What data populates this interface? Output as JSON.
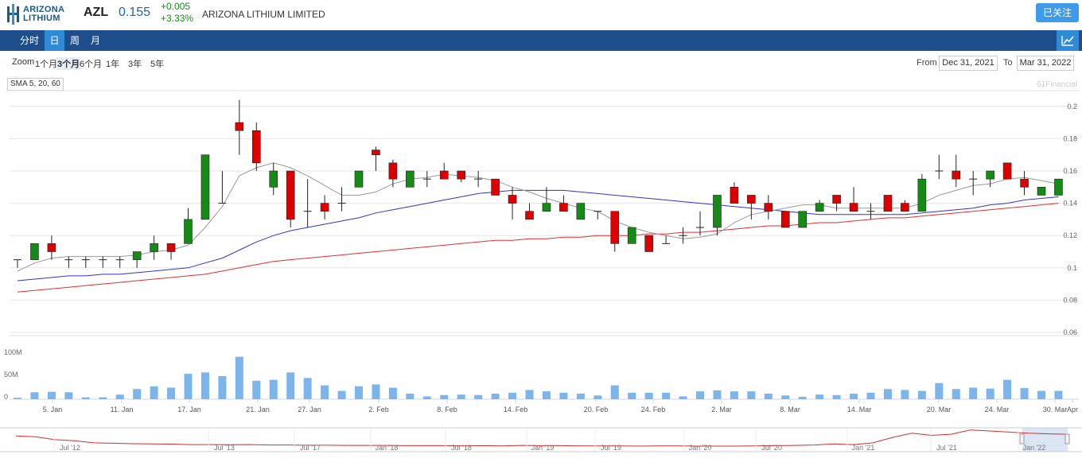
{
  "header": {
    "logo_line1": "ARIZONA",
    "logo_line2": "LITHIUM",
    "ticker": "AZL",
    "price": "0.155",
    "change": "+0.005",
    "change_pct": "+3.33%",
    "company": "ARIZONA LITHIUM LIMITED",
    "follow_label": "已关注"
  },
  "nav": {
    "tabs": [
      {
        "label": "分时",
        "active": false
      },
      {
        "label": "日",
        "active": true
      },
      {
        "label": "周",
        "active": false
      },
      {
        "label": "月",
        "active": false
      }
    ]
  },
  "zoom": {
    "label": "Zoom",
    "options": [
      "1个月",
      "3个月",
      "6个月",
      "1年",
      "3年",
      "5年"
    ],
    "selected": "3个月"
  },
  "range": {
    "from_label": "From",
    "from_value": "Dec 31, 2021",
    "to_label": "To",
    "to_value": "Mar 31, 2022"
  },
  "indicator_label": "SMA 5, 20, 60",
  "credit": "61Financial",
  "colors": {
    "up": "#168a16",
    "down": "#dd0000",
    "sma5": "#999999",
    "sma20": "#3333cc",
    "sma60": "#e03030",
    "volume": "#7cb5ec",
    "nav": "#1e4f8c",
    "accent": "#2f8ad8"
  },
  "chart_data": {
    "type": "candlestick",
    "y_ticks": [
      "0.06",
      "0.08",
      "0.1",
      "0.12",
      "0.14",
      "0.16",
      "0.18",
      "0.2"
    ],
    "x_ticks": [
      "5. Jan",
      "11. Jan",
      "17. Jan",
      "21. Jan",
      "27. Jan",
      "2. Feb",
      "8. Feb",
      "14. Feb",
      "20. Feb",
      "24. Feb",
      "2. Mar",
      "8. Mar",
      "14. Mar",
      "20. Mar",
      "24. Mar",
      "30. Mar",
      "Apr"
    ],
    "ohlc": [
      [
        0.105,
        0.105,
        0.1,
        0.105
      ],
      [
        0.105,
        0.115,
        0.105,
        0.115
      ],
      [
        0.115,
        0.12,
        0.105,
        0.11
      ],
      [
        0.105,
        0.107,
        0.1,
        0.105
      ],
      [
        0.105,
        0.107,
        0.1,
        0.105
      ],
      [
        0.105,
        0.107,
        0.1,
        0.105
      ],
      [
        0.105,
        0.107,
        0.1,
        0.105
      ],
      [
        0.105,
        0.11,
        0.1,
        0.11
      ],
      [
        0.11,
        0.12,
        0.105,
        0.115
      ],
      [
        0.115,
        0.115,
        0.105,
        0.11
      ],
      [
        0.115,
        0.137,
        0.115,
        0.13
      ],
      [
        0.13,
        0.17,
        0.13,
        0.17
      ],
      [
        0.14,
        0.16,
        0.14,
        0.14
      ],
      [
        0.19,
        0.204,
        0.17,
        0.185
      ],
      [
        0.185,
        0.19,
        0.16,
        0.165
      ],
      [
        0.15,
        0.165,
        0.145,
        0.16
      ],
      [
        0.16,
        0.16,
        0.125,
        0.13
      ],
      [
        0.135,
        0.155,
        0.125,
        0.135
      ],
      [
        0.14,
        0.145,
        0.13,
        0.135
      ],
      [
        0.14,
        0.15,
        0.135,
        0.14
      ],
      [
        0.15,
        0.16,
        0.15,
        0.16
      ],
      [
        0.173,
        0.175,
        0.16,
        0.17
      ],
      [
        0.165,
        0.167,
        0.15,
        0.155
      ],
      [
        0.15,
        0.16,
        0.15,
        0.16
      ],
      [
        0.155,
        0.16,
        0.15,
        0.155
      ],
      [
        0.16,
        0.165,
        0.155,
        0.155
      ],
      [
        0.16,
        0.16,
        0.153,
        0.155
      ],
      [
        0.155,
        0.16,
        0.15,
        0.155
      ],
      [
        0.155,
        0.155,
        0.145,
        0.145
      ],
      [
        0.145,
        0.15,
        0.13,
        0.14
      ],
      [
        0.135,
        0.14,
        0.13,
        0.13
      ],
      [
        0.135,
        0.15,
        0.135,
        0.14
      ],
      [
        0.14,
        0.145,
        0.135,
        0.135
      ],
      [
        0.13,
        0.14,
        0.13,
        0.14
      ],
      [
        0.135,
        0.135,
        0.13,
        0.135
      ],
      [
        0.135,
        0.135,
        0.11,
        0.115
      ],
      [
        0.115,
        0.125,
        0.115,
        0.125
      ],
      [
        0.12,
        0.12,
        0.11,
        0.11
      ],
      [
        0.115,
        0.12,
        0.115,
        0.115
      ],
      [
        0.12,
        0.125,
        0.115,
        0.12
      ],
      [
        0.125,
        0.135,
        0.12,
        0.125
      ],
      [
        0.125,
        0.145,
        0.12,
        0.145
      ],
      [
        0.15,
        0.153,
        0.14,
        0.14
      ],
      [
        0.145,
        0.145,
        0.13,
        0.14
      ],
      [
        0.14,
        0.145,
        0.13,
        0.135
      ],
      [
        0.135,
        0.135,
        0.125,
        0.125
      ],
      [
        0.125,
        0.135,
        0.125,
        0.135
      ],
      [
        0.135,
        0.142,
        0.135,
        0.14
      ],
      [
        0.145,
        0.145,
        0.135,
        0.14
      ],
      [
        0.14,
        0.15,
        0.135,
        0.135
      ],
      [
        0.135,
        0.14,
        0.13,
        0.135
      ],
      [
        0.145,
        0.145,
        0.135,
        0.135
      ],
      [
        0.14,
        0.142,
        0.135,
        0.135
      ],
      [
        0.135,
        0.158,
        0.135,
        0.155
      ],
      [
        0.16,
        0.17,
        0.155,
        0.16
      ],
      [
        0.16,
        0.17,
        0.15,
        0.155
      ],
      [
        0.155,
        0.16,
        0.145,
        0.155
      ],
      [
        0.155,
        0.16,
        0.15,
        0.16
      ],
      [
        0.165,
        0.165,
        0.155,
        0.155
      ],
      [
        0.155,
        0.16,
        0.145,
        0.15
      ],
      [
        0.145,
        0.15,
        0.145,
        0.15
      ],
      [
        0.145,
        0.155,
        0.145,
        0.155
      ]
    ],
    "sma5": [
      0.098,
      0.103,
      0.106,
      0.107,
      0.107,
      0.107,
      0.107,
      0.108,
      0.11,
      0.111,
      0.114,
      0.125,
      0.138,
      0.157,
      0.162,
      0.165,
      0.162,
      0.157,
      0.151,
      0.145,
      0.145,
      0.147,
      0.152,
      0.155,
      0.156,
      0.158,
      0.157,
      0.156,
      0.154,
      0.15,
      0.147,
      0.143,
      0.14,
      0.137,
      0.135,
      0.129,
      0.125,
      0.122,
      0.12,
      0.118,
      0.119,
      0.121,
      0.128,
      0.133,
      0.135,
      0.137,
      0.139,
      0.139,
      0.137,
      0.137,
      0.137,
      0.137,
      0.137,
      0.14,
      0.145,
      0.148,
      0.151,
      0.152,
      0.155,
      0.156,
      0.154,
      0.152
    ],
    "sma20": [
      0.092,
      0.093,
      0.094,
      0.095,
      0.095,
      0.096,
      0.096,
      0.097,
      0.098,
      0.099,
      0.1,
      0.103,
      0.106,
      0.111,
      0.116,
      0.12,
      0.123,
      0.125,
      0.127,
      0.129,
      0.131,
      0.134,
      0.136,
      0.138,
      0.14,
      0.142,
      0.144,
      0.146,
      0.147,
      0.148,
      0.148,
      0.148,
      0.148,
      0.147,
      0.146,
      0.145,
      0.144,
      0.143,
      0.142,
      0.141,
      0.14,
      0.139,
      0.138,
      0.137,
      0.136,
      0.135,
      0.134,
      0.133,
      0.133,
      0.133,
      0.133,
      0.133,
      0.133,
      0.134,
      0.135,
      0.136,
      0.137,
      0.139,
      0.14,
      0.142,
      0.143,
      0.144
    ],
    "sma60": [
      0.085,
      0.086,
      0.087,
      0.088,
      0.089,
      0.09,
      0.091,
      0.092,
      0.093,
      0.094,
      0.095,
      0.096,
      0.098,
      0.1,
      0.102,
      0.104,
      0.105,
      0.106,
      0.107,
      0.108,
      0.109,
      0.11,
      0.111,
      0.112,
      0.113,
      0.114,
      0.115,
      0.116,
      0.117,
      0.117,
      0.118,
      0.118,
      0.119,
      0.119,
      0.12,
      0.12,
      0.12,
      0.121,
      0.121,
      0.122,
      0.122,
      0.123,
      0.124,
      0.125,
      0.126,
      0.126,
      0.127,
      0.128,
      0.128,
      0.129,
      0.13,
      0.131,
      0.131,
      0.132,
      0.133,
      0.134,
      0.135,
      0.136,
      0.137,
      0.138,
      0.139,
      0.14
    ],
    "volume_ticks": [
      "100M",
      "50M",
      "0"
    ],
    "volume_m": [
      3,
      15,
      16,
      15,
      4,
      4,
      10,
      22,
      28,
      25,
      55,
      58,
      50,
      92,
      40,
      42,
      58,
      46,
      30,
      18,
      28,
      32,
      25,
      12,
      6,
      9,
      10,
      9,
      12,
      14,
      20,
      17,
      14,
      12,
      8,
      30,
      14,
      14,
      14,
      6,
      17,
      19,
      17,
      17,
      12,
      8,
      5,
      10,
      9,
      12,
      14,
      22,
      20,
      18,
      35,
      22,
      25,
      23,
      42,
      24,
      18,
      18
    ],
    "navigator_ticks": [
      "Jul '12",
      "Jul '13",
      "Jul '17",
      "Jan '18",
      "Jul '18",
      "Jan '19",
      "Jul '19",
      "Jan '20",
      "Jul '20",
      "Jan '21",
      "Jul '21",
      "Jan '22"
    ],
    "navigator_series": [
      0.62,
      0.58,
      0.45,
      0.4,
      0.3,
      0.28,
      0.26,
      0.25,
      0.24,
      0.22,
      0.22,
      0.21,
      0.22,
      0.2,
      0.2,
      0.19,
      0.19,
      0.18,
      0.18,
      0.18,
      0.17,
      0.17,
      0.17,
      0.16,
      0.17,
      0.16,
      0.18,
      0.17,
      0.17,
      0.16,
      0.16,
      0.16,
      0.15,
      0.16,
      0.16,
      0.15,
      0.15,
      0.15,
      0.16,
      0.17,
      0.18,
      0.2,
      0.25,
      0.22,
      0.3,
      0.55,
      0.75,
      0.65,
      0.7,
      0.9,
      0.85,
      0.8,
      0.75,
      0.72,
      0.7
    ]
  }
}
